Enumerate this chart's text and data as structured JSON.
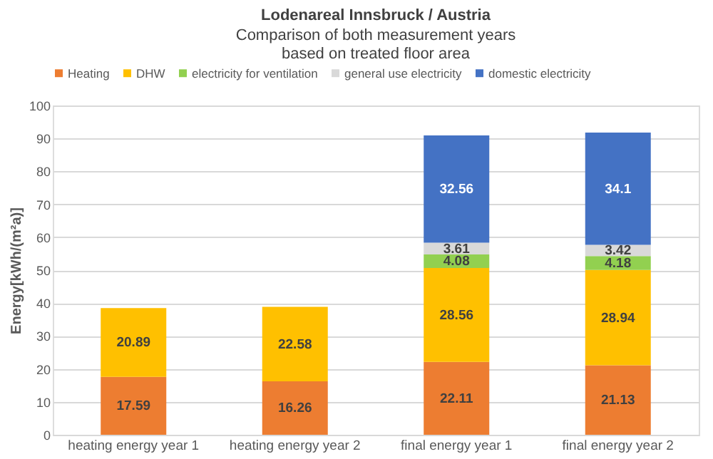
{
  "chart_data": {
    "type": "bar",
    "stacked": true,
    "title": "Lodenareal  Innsbruck  / Austria",
    "subtitle": "Comparison of both measurement years\nbased on treated floor area",
    "ylabel": "Energy[kWh/(m²a)]",
    "categories": [
      "heating energy year 1",
      "heating energy year 2",
      "final energy year 1",
      "final energy year 2"
    ],
    "series": [
      {
        "name": "Heating",
        "color": "#ed7d31",
        "values": [
          17.59,
          16.26,
          22.11,
          21.13
        ]
      },
      {
        "name": "DHW",
        "color": "#ffc000",
        "values": [
          20.89,
          22.58,
          28.56,
          28.94
        ]
      },
      {
        "name": "electricity for ventilation",
        "color": "#92d050",
        "values": [
          null,
          null,
          4.08,
          4.18
        ]
      },
      {
        "name": "general use electricity",
        "color": "#d9d9d9",
        "values": [
          null,
          null,
          3.61,
          3.42
        ]
      },
      {
        "name": "domestic electricity",
        "color": "#4472c4",
        "values": [
          null,
          null,
          32.56,
          34.1
        ]
      }
    ],
    "ylim": [
      0,
      100
    ],
    "yticks": [
      0,
      10,
      20,
      30,
      40,
      50,
      60,
      70,
      80,
      90,
      100
    ],
    "grid": "y",
    "legend": "top",
    "data_labels": true
  }
}
